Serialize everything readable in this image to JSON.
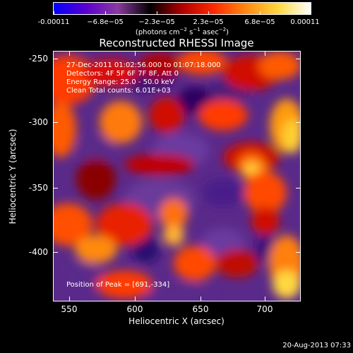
{
  "colorbar": {
    "labels": [
      "-0.00011",
      "−6.8e−05",
      "−2.3e−05",
      "2.3e−05",
      "6.8e−05",
      "0.00011"
    ],
    "units_prefix": "(photons cm",
    "units_exp1": "−2",
    "units_mid": " s",
    "units_exp2": "−1",
    "units_mid2": " asec",
    "units_exp3": "−2",
    "units_suffix": ")",
    "colors": [
      "#0000ff",
      "#5a00d0",
      "#8a3aa0",
      "#000000",
      "#b00000",
      "#ff2a00",
      "#ff8a10",
      "#ffd840",
      "#ffffff"
    ]
  },
  "chart_data": {
    "type": "heatmap",
    "title": "Reconstructed RHESSI Image",
    "xlabel": "Heliocentric X (arcsec)",
    "ylabel": "Heliocentric Y (arcsec)",
    "xlim": [
      538,
      726
    ],
    "ylim": [
      -437,
      -248
    ],
    "xticks": [
      550,
      600,
      650,
      700
    ],
    "yticks": [
      -250,
      -300,
      -350,
      -400
    ],
    "value_range": [
      -0.00011,
      0.00011
    ],
    "peak": [
      691,
      -334
    ]
  },
  "annotations": {
    "time_range": "27-Dec-2011 01:02:56.000 to 01:07:18.000",
    "detectors": "Detectors: 4F 5F 6F 7F 8F, Att 0",
    "energy": "Energy Range: 25.0 - 50.0 keV",
    "clean": "Clean    Total counts: 6.01E+03",
    "peak_text": "Position of Peak = [691,-334]"
  },
  "footer": {
    "timestamp": "20-Aug-2013 07:33"
  }
}
